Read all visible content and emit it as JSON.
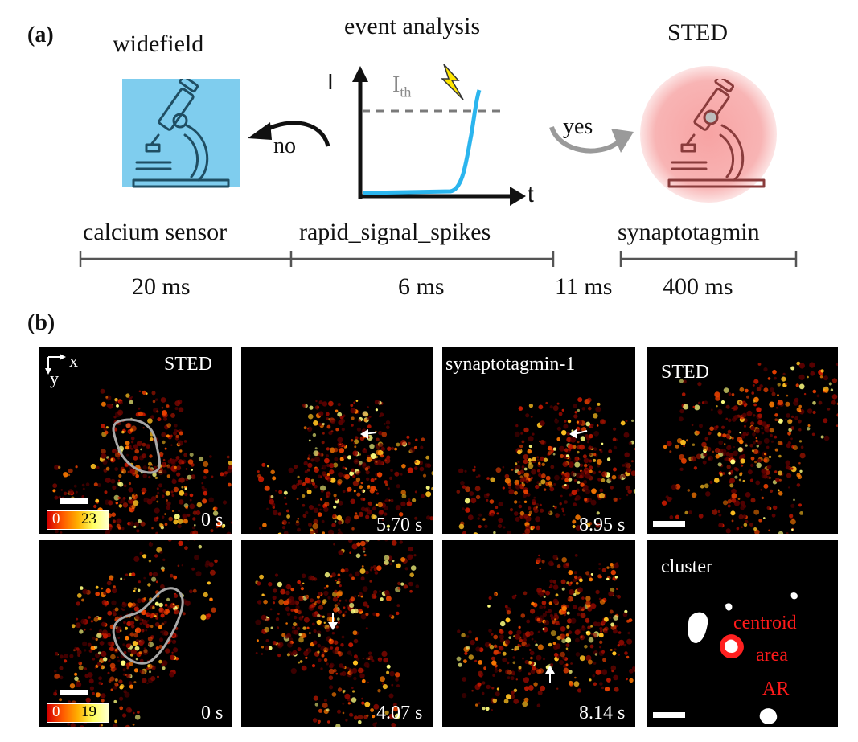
{
  "panel_a": {
    "letter": "(a)",
    "widefield_title": "widefield",
    "event_title": "event analysis",
    "sted_title": "STED",
    "plot": {
      "y_axis": "I",
      "x_axis": "t",
      "threshold": "I",
      "threshold_sub": "th"
    },
    "no_label": "no",
    "yes_label": "yes",
    "stages": [
      "calcium sensor",
      "rapid_signal_spikes",
      "synaptotagmin"
    ],
    "times": [
      "20 ms",
      "6 ms",
      "11 ms",
      "400 ms"
    ],
    "colors": {
      "widefield_box": "#7fcdee",
      "sted_glow": "#f7a3a3",
      "curve": "#2bb5ee",
      "bolt": "#ffe600"
    }
  },
  "panel_b": {
    "letter": "(b)",
    "axes": {
      "x": "x",
      "y": "y"
    },
    "row1": {
      "frames": [
        {
          "label": "STED",
          "time": "0 s",
          "cbar_min": "0",
          "cbar_max": "23"
        },
        {
          "label": "",
          "time": "5.70 s"
        },
        {
          "label": "synaptotagmin-1",
          "time": "8.95 s"
        },
        {
          "label": "STED",
          "time": ""
        }
      ]
    },
    "row2": {
      "frames": [
        {
          "label": "",
          "time": "0 s",
          "cbar_min": "0",
          "cbar_max": "19"
        },
        {
          "label": "",
          "time": "4.07 s"
        },
        {
          "label": "",
          "time": "8.14 s"
        },
        {
          "label": "cluster",
          "time": ""
        }
      ]
    },
    "cluster_annotations": [
      "centroid",
      "area",
      "AR"
    ]
  }
}
